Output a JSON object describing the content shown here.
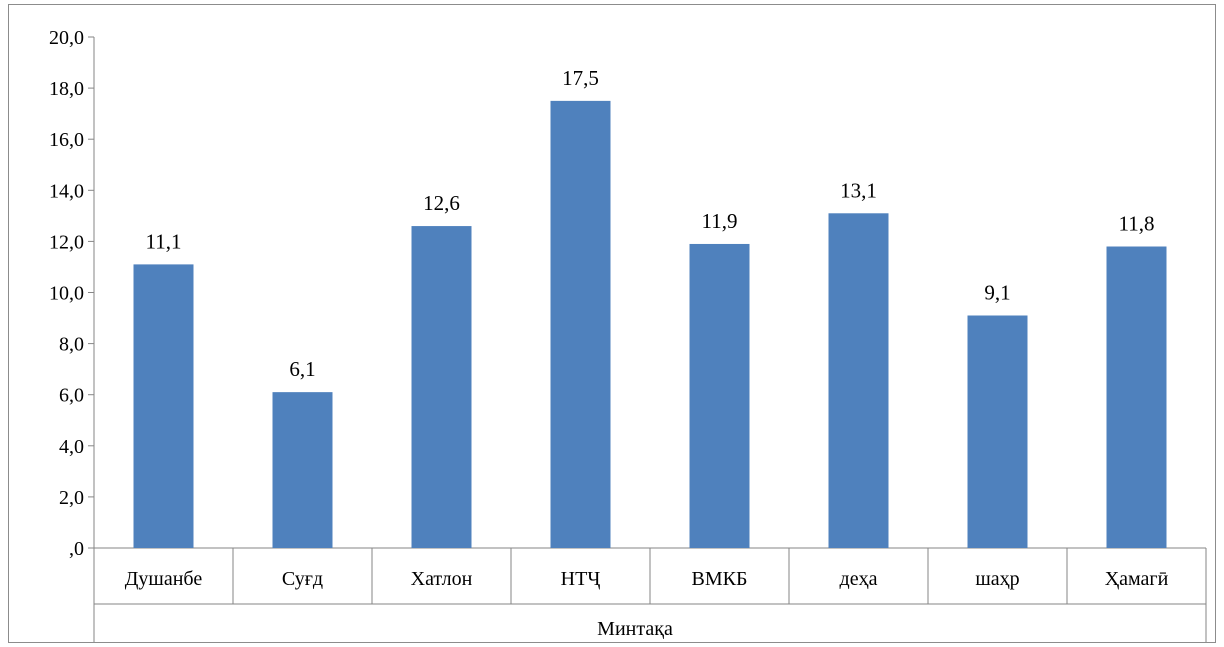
{
  "chart_data": {
    "type": "bar",
    "categories": [
      "Душанбе",
      "Суғд",
      "Хатлон",
      "НТҶ",
      "ВМКБ",
      "деҳа",
      "шаҳр",
      "Ҳамагӣ"
    ],
    "values": [
      11.1,
      6.1,
      12.6,
      17.5,
      11.9,
      13.1,
      9.1,
      11.8
    ],
    "data_labels": [
      "11,1",
      "6,1",
      "12,6",
      "17,5",
      "11,9",
      "13,1",
      "9,1",
      "11,8"
    ],
    "y_tick_labels": [
      ",0",
      "2,0",
      "4,0",
      "6,0",
      "8,0",
      "10,0",
      "12,0",
      "14,0",
      "16,0",
      "18,0",
      "20,0"
    ],
    "ylim": [
      0,
      20
    ],
    "xlabel": "Минтақа",
    "ylabel": "",
    "title": "",
    "grid": false,
    "legend": "none",
    "bar_color": "#4F81BD"
  }
}
